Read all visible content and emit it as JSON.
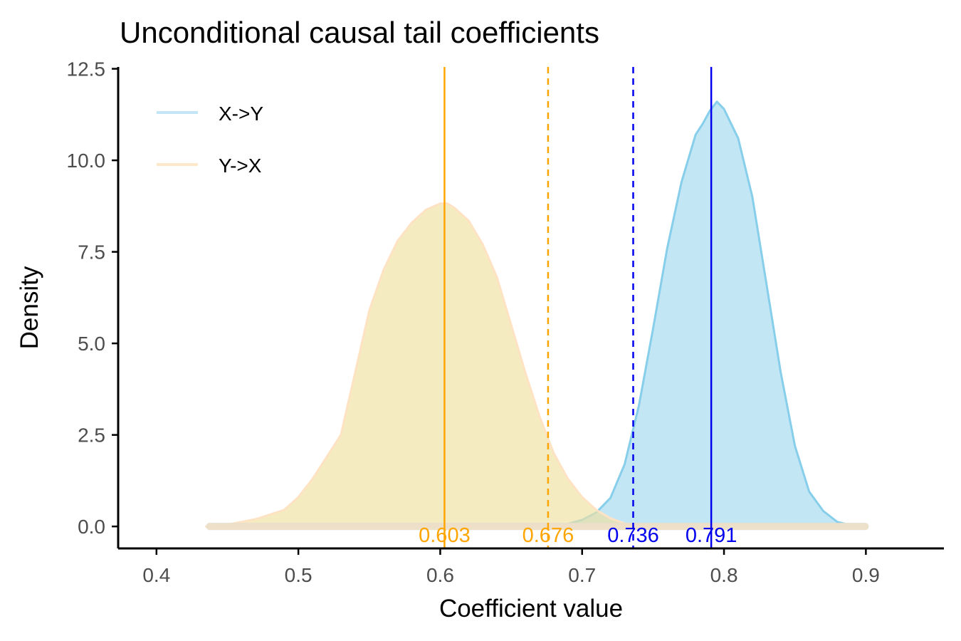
{
  "chart_data": {
    "type": "density",
    "title": "Unconditional causal tail coefficients",
    "xlabel": "Coefficient value",
    "ylabel": "Density",
    "xlim": [
      0.373,
      0.955
    ],
    "ylim": [
      -0.6,
      12.55
    ],
    "x_ticks": [
      0.4,
      0.5,
      0.6,
      0.7,
      0.8,
      0.9
    ],
    "x_tick_labels": [
      "0.4",
      "0.5",
      "0.6",
      "0.7",
      "0.8",
      "0.9"
    ],
    "y_ticks": [
      0,
      2.5,
      5,
      7.5,
      10,
      12.5
    ],
    "y_tick_labels": [
      "0.0",
      "2.5",
      "5.0",
      "7.5",
      "10.0",
      "12.5"
    ],
    "legend": {
      "position": "top-left",
      "entries": [
        {
          "label": "X->Y",
          "color": "#c3e5f5"
        },
        {
          "label": "Y->X",
          "color": "#fde8c9"
        }
      ]
    },
    "series": [
      {
        "name": "X->Y",
        "fill": "#87ceeb",
        "fill_opacity": 0.5,
        "stroke": "#87ceeb",
        "rug_color": "#87ceeb",
        "rug_range": [
          0.435,
          0.902
        ],
        "x": [
          0.45,
          0.66,
          0.69,
          0.7,
          0.71,
          0.72,
          0.73,
          0.74,
          0.75,
          0.76,
          0.77,
          0.78,
          0.785,
          0.79,
          0.795,
          0.8,
          0.805,
          0.81,
          0.82,
          0.83,
          0.84,
          0.85,
          0.86,
          0.87,
          0.88,
          0.89,
          0.9
        ],
        "y": [
          0.0,
          0.0,
          0.07,
          0.18,
          0.38,
          0.78,
          1.7,
          3.3,
          5.4,
          7.6,
          9.4,
          10.7,
          11.0,
          11.35,
          11.6,
          11.4,
          11.0,
          10.6,
          9.0,
          6.6,
          4.2,
          2.2,
          0.95,
          0.42,
          0.12,
          0.03,
          0.0
        ]
      },
      {
        "name": "Y->X",
        "fill": "#f0e0a0",
        "fill_opacity": 0.65,
        "stroke": "#fde3c3",
        "rug_color": "#fde3c3",
        "rug_range": [
          0.435,
          0.902
        ],
        "x": [
          0.435,
          0.45,
          0.47,
          0.49,
          0.5,
          0.51,
          0.52,
          0.53,
          0.54,
          0.55,
          0.56,
          0.57,
          0.58,
          0.59,
          0.6,
          0.605,
          0.61,
          0.62,
          0.63,
          0.64,
          0.65,
          0.66,
          0.67,
          0.68,
          0.69,
          0.7,
          0.71,
          0.72,
          0.73,
          0.74,
          0.76,
          0.78,
          0.8
        ],
        "y": [
          0.0,
          0.05,
          0.2,
          0.45,
          0.8,
          1.3,
          1.9,
          2.5,
          4.2,
          5.9,
          7.0,
          7.8,
          8.3,
          8.65,
          8.82,
          8.82,
          8.7,
          8.35,
          7.7,
          6.8,
          5.5,
          4.2,
          3.0,
          2.0,
          1.3,
          0.8,
          0.45,
          0.22,
          0.08,
          0.02,
          0.0,
          0.0,
          0.0
        ]
      }
    ],
    "vertical_lines": [
      {
        "x": 0.603,
        "label": "0.603",
        "color": "#ffa500",
        "style": "solid"
      },
      {
        "x": 0.676,
        "label": "0.676",
        "color": "#ffa500",
        "style": "dashed"
      },
      {
        "x": 0.736,
        "label": "0.736",
        "color": "#0000ee",
        "style": "dashed"
      },
      {
        "x": 0.791,
        "label": "0.791",
        "color": "#0000ee",
        "style": "solid"
      }
    ]
  }
}
